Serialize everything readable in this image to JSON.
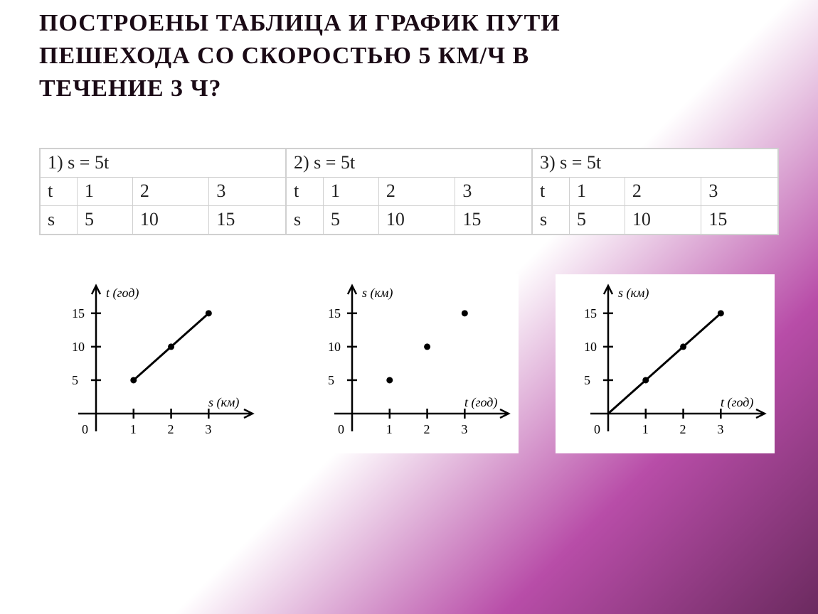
{
  "heading": {
    "line1": "ПОСТРОЕНЫ ТАБЛИЦА И ГРАФИК ПУТИ",
    "line2": "ПЕШЕХОДА СО СКОРОСТЬЮ 5 КМ/Ч В",
    "line3": "ТЕЧЕНИЕ 3 Ч?"
  },
  "tables": [
    {
      "formula": "1) s = 5t",
      "row_t_label": "t",
      "t": [
        "1",
        "2",
        "3"
      ],
      "row_s_label": "s",
      "s": [
        "5",
        "10",
        "15"
      ]
    },
    {
      "formula": "2) s = 5t",
      "row_t_label": "t",
      "t": [
        "1",
        "2",
        "3"
      ],
      "row_s_label": "s",
      "s": [
        "5",
        "10",
        "15"
      ]
    },
    {
      "formula": "3) s = 5t",
      "row_t_label": "t",
      "t": [
        "1",
        "2",
        "3"
      ],
      "row_s_label": "s",
      "s": [
        "5",
        "10",
        "15"
      ]
    }
  ],
  "charts": [
    {
      "type": "line",
      "y_axis_label": "t (год)",
      "x_axis_label": "s (км)",
      "origin_label": "0",
      "x_ticks": [
        "1",
        "2",
        "3"
      ],
      "y_ticks": [
        "5",
        "10",
        "15"
      ],
      "points": [
        [
          1,
          5
        ],
        [
          2,
          10
        ],
        [
          3,
          15
        ]
      ],
      "connect": true,
      "start_from_origin": false,
      "colors": {
        "axis": "#000000",
        "point": "#000000",
        "line": "#000000",
        "background": "#ffffff"
      },
      "xlim": [
        0,
        3.6
      ],
      "ylim": [
        0,
        17
      ],
      "line_width": 3,
      "point_radius": 4.5
    },
    {
      "type": "scatter",
      "y_axis_label": "s (км)",
      "x_axis_label": "t (год)",
      "origin_label": "0",
      "x_ticks": [
        "1",
        "2",
        "3"
      ],
      "y_ticks": [
        "5",
        "10",
        "15"
      ],
      "points": [
        [
          1,
          5
        ],
        [
          2,
          10
        ],
        [
          3,
          15
        ]
      ],
      "connect": false,
      "start_from_origin": false,
      "colors": {
        "axis": "#000000",
        "point": "#000000",
        "line": "#000000",
        "background": "#ffffff"
      },
      "xlim": [
        0,
        3.6
      ],
      "ylim": [
        0,
        17
      ],
      "line_width": 3,
      "point_radius": 4.5
    },
    {
      "type": "line",
      "y_axis_label": "s (км)",
      "x_axis_label": "t (год)",
      "origin_label": "0",
      "x_ticks": [
        "1",
        "2",
        "3"
      ],
      "y_ticks": [
        "5",
        "10",
        "15"
      ],
      "points": [
        [
          1,
          5
        ],
        [
          2,
          10
        ],
        [
          3,
          15
        ]
      ],
      "connect": true,
      "start_from_origin": true,
      "colors": {
        "axis": "#000000",
        "point": "#000000",
        "line": "#000000",
        "background": "#ffffff"
      },
      "xlim": [
        0,
        3.6
      ],
      "ylim": [
        0,
        17
      ],
      "line_width": 3,
      "point_radius": 4.5
    }
  ]
}
